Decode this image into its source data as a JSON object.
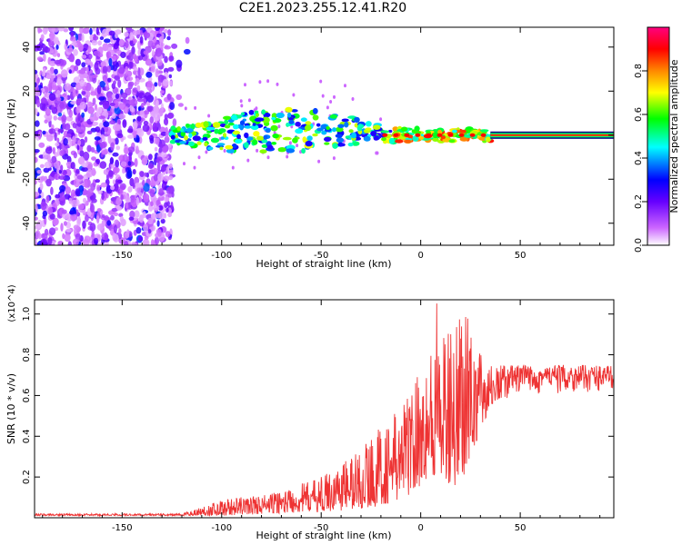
{
  "title": "C2E1.2023.255.12.41.R20",
  "charts": [
    {
      "type": "heatmap",
      "xlabel": "Height of straight line (km)",
      "ylabel": "Frequency (Hz)",
      "xlim": [
        -194,
        97
      ],
      "ylim": [
        -50,
        49
      ],
      "xticks": [
        "-150",
        "-100",
        "-50",
        "0",
        "50"
      ],
      "xtick_values": [
        -150,
        -100,
        -50,
        0,
        50
      ],
      "yticks": [
        "-40",
        "-20",
        "0",
        "20",
        "40"
      ],
      "ytick_values": [
        -40,
        -20,
        0,
        20,
        40
      ],
      "colorbar": {
        "label": "Normalized spectral amplitude",
        "range": [
          0,
          1
        ],
        "ticks": [
          "0.0",
          "0.2",
          "0.4",
          "0.6",
          "0.8"
        ],
        "tick_values": [
          0,
          0.2,
          0.4,
          0.6,
          0.8
        ],
        "colors": [
          "#ffffff",
          "#cc66ff",
          "#6600ff",
          "#0000ff",
          "#00ffff",
          "#00ff00",
          "#ffff00",
          "#ff8800",
          "#ff0000",
          "#ff0080"
        ]
      },
      "bands": [
        {
          "x_range": [
            -194,
            -125
          ],
          "note": "broadband noise scatter",
          "amplitude": 0.3
        },
        {
          "x_range": [
            -125,
            35
          ],
          "freq_center": 0,
          "amplitude": 0.55
        },
        {
          "x_range": [
            35,
            97
          ],
          "freq_center": 0,
          "amplitude": 0.95
        }
      ]
    },
    {
      "type": "line",
      "xlabel": "Height of straight line (km)",
      "ylabel": "SNR (10 * v/v)",
      "scale_label": "(x10^4)",
      "xlim": [
        -194,
        97
      ],
      "ylim": [
        0.0,
        1.07
      ],
      "xticks": [
        "-150",
        "-100",
        "-50",
        "0",
        "50"
      ],
      "xtick_values": [
        -150,
        -100,
        -50,
        0,
        50
      ],
      "yticks": [
        "0.2",
        "0.4",
        "0.6",
        "0.8",
        "1.0"
      ],
      "ytick_values": [
        0.2,
        0.4,
        0.6,
        0.8,
        1.0
      ],
      "color": "#ee3333",
      "envelope": [
        {
          "x": -194,
          "lo": 0.01,
          "hi": 0.02
        },
        {
          "x": -120,
          "lo": 0.01,
          "hi": 0.02
        },
        {
          "x": -100,
          "lo": 0.01,
          "hi": 0.09
        },
        {
          "x": -75,
          "lo": 0.02,
          "hi": 0.12
        },
        {
          "x": -50,
          "lo": 0.03,
          "hi": 0.2
        },
        {
          "x": -30,
          "lo": 0.04,
          "hi": 0.35
        },
        {
          "x": -10,
          "lo": 0.08,
          "hi": 0.55
        },
        {
          "x": 5,
          "lo": 0.2,
          "hi": 0.85
        },
        {
          "x": 20,
          "lo": 0.15,
          "hi": 0.95
        },
        {
          "x": 35,
          "lo": 0.55,
          "hi": 0.75
        },
        {
          "x": 50,
          "lo": 0.6,
          "hi": 0.75
        },
        {
          "x": 97,
          "lo": 0.62,
          "hi": 0.75
        }
      ]
    }
  ]
}
